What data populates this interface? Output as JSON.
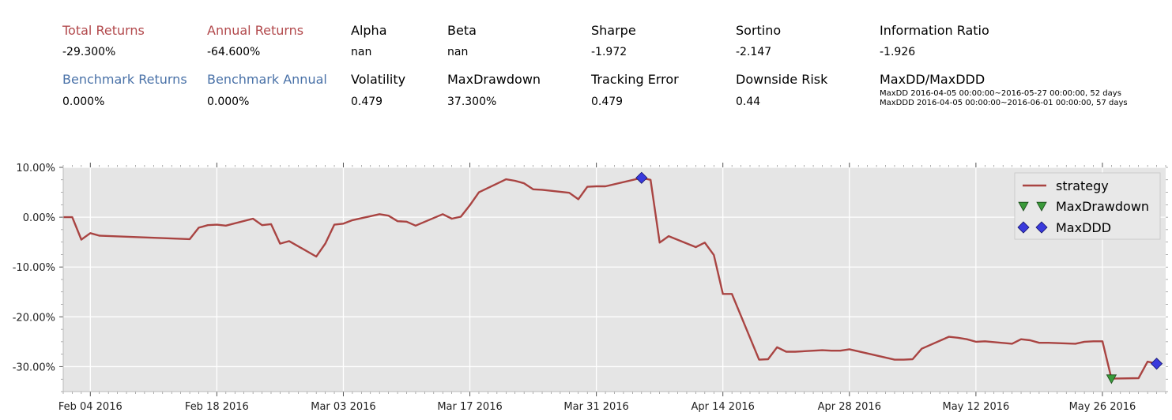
{
  "stats": {
    "total_returns": {
      "label": "Total Returns",
      "value": "-29.300%"
    },
    "annual_returns": {
      "label": "Annual Returns",
      "value": "-64.600%"
    },
    "alpha": {
      "label": "Alpha",
      "value": "nan"
    },
    "beta": {
      "label": "Beta",
      "value": "nan"
    },
    "sharpe": {
      "label": "Sharpe",
      "value": "-1.972"
    },
    "sortino": {
      "label": "Sortino",
      "value": "-2.147"
    },
    "information_ratio": {
      "label": "Information Ratio",
      "value": "-1.926"
    },
    "benchmark_returns": {
      "label": "Benchmark Returns",
      "value": "0.000%"
    },
    "benchmark_annual": {
      "label": "Benchmark Annual",
      "value": "0.000%"
    },
    "volatility": {
      "label": "Volatility",
      "value": "0.479"
    },
    "max_drawdown": {
      "label": "MaxDrawdown",
      "value": "37.300%"
    },
    "tracking_error": {
      "label": "Tracking Error",
      "value": "0.479"
    },
    "downside_risk": {
      "label": "Downside Risk",
      "value": "0.44"
    },
    "maxdd_maxddd": {
      "label": "MaxDD/MaxDDD",
      "maxdd_line": "MaxDD  2016-04-05 00:00:00~2016-05-27 00:00:00, 52 days",
      "maxddd_line": "MaxDDD 2016-04-05 00:00:00~2016-06-01 00:00:00, 57 days"
    }
  },
  "colors": {
    "strategy": "#a94442",
    "plot_bg": "#e5e5e5",
    "grid": "#ffffff",
    "maxdrawdown_marker": "#3a9a3a",
    "maxddd_marker": "#3a3adc",
    "label_red": "#b2494c",
    "label_blue": "#4a72a8"
  },
  "chart_data": {
    "type": "line",
    "x_axis": "date",
    "ylim": [
      -35,
      10
    ],
    "y_unit": "%",
    "yticks": [
      10,
      0,
      -10,
      -20,
      -30
    ],
    "ytick_labels": [
      "10.00%",
      "0.00%",
      "-10.00%",
      "-20.00%",
      "-30.00%"
    ],
    "xlim": [
      "2016-02-01",
      "2016-06-02"
    ],
    "xticks": [
      "2016-02-04",
      "2016-02-18",
      "2016-03-03",
      "2016-03-17",
      "2016-03-31",
      "2016-04-14",
      "2016-04-28",
      "2016-05-12",
      "2016-05-26"
    ],
    "xtick_labels": [
      "Feb 04 2016",
      "Feb 18 2016",
      "Mar 03 2016",
      "Mar 17 2016",
      "Mar 31 2016",
      "Apr 14 2016",
      "Apr 28 2016",
      "May 12 2016",
      "May 26 2016"
    ],
    "grid": true,
    "legend_position": "top-right",
    "series": [
      {
        "name": "strategy",
        "x": [
          "2016-02-01",
          "2016-02-02",
          "2016-02-03",
          "2016-02-04",
          "2016-02-05",
          "2016-02-15",
          "2016-02-16",
          "2016-02-17",
          "2016-02-18",
          "2016-02-19",
          "2016-02-22",
          "2016-02-23",
          "2016-02-24",
          "2016-02-25",
          "2016-02-26",
          "2016-02-29",
          "2016-03-01",
          "2016-03-02",
          "2016-03-03",
          "2016-03-04",
          "2016-03-07",
          "2016-03-08",
          "2016-03-09",
          "2016-03-10",
          "2016-03-11",
          "2016-03-14",
          "2016-03-15",
          "2016-03-16",
          "2016-03-17",
          "2016-03-18",
          "2016-03-21",
          "2016-03-22",
          "2016-03-23",
          "2016-03-24",
          "2016-03-25",
          "2016-03-28",
          "2016-03-29",
          "2016-03-30",
          "2016-03-31",
          "2016-04-01",
          "2016-04-05",
          "2016-04-06",
          "2016-04-07",
          "2016-04-08",
          "2016-04-11",
          "2016-04-12",
          "2016-04-13",
          "2016-04-14",
          "2016-04-15",
          "2016-04-18",
          "2016-04-19",
          "2016-04-20",
          "2016-04-21",
          "2016-04-22",
          "2016-04-25",
          "2016-04-26",
          "2016-04-27",
          "2016-04-28",
          "2016-05-03",
          "2016-05-04",
          "2016-05-05",
          "2016-05-06",
          "2016-05-09",
          "2016-05-10",
          "2016-05-11",
          "2016-05-12",
          "2016-05-13",
          "2016-05-16",
          "2016-05-17",
          "2016-05-18",
          "2016-05-19",
          "2016-05-20",
          "2016-05-23",
          "2016-05-24",
          "2016-05-25",
          "2016-05-26",
          "2016-05-27",
          "2016-05-30",
          "2016-05-31",
          "2016-06-01"
        ],
        "y": [
          0.0,
          0.0,
          -4.5,
          -3.2,
          -3.7,
          -4.4,
          -2.1,
          -1.6,
          -1.5,
          -1.7,
          -0.3,
          -1.6,
          -1.4,
          -5.3,
          -4.8,
          -7.9,
          -5.3,
          -1.5,
          -1.3,
          -0.6,
          0.6,
          0.3,
          -0.8,
          -0.9,
          -1.7,
          0.6,
          -0.3,
          0.1,
          2.4,
          5.0,
          7.6,
          7.3,
          6.8,
          5.6,
          5.5,
          4.9,
          3.6,
          6.1,
          6.2,
          6.2,
          7.9,
          7.5,
          -5.1,
          -3.8,
          -6.0,
          -5.1,
          -7.6,
          -15.4,
          -15.4,
          -28.6,
          -28.5,
          -26.1,
          -27.0,
          -27.0,
          -26.7,
          -26.8,
          -26.8,
          -26.5,
          -28.6,
          -28.6,
          -28.5,
          -26.4,
          -24.0,
          -24.2,
          -24.5,
          -25.0,
          -24.9,
          -25.4,
          -24.5,
          -24.7,
          -25.2,
          -25.2,
          -25.4,
          -25.0,
          -24.9,
          -24.9,
          -32.4,
          -32.3,
          -29.0,
          -29.4
        ]
      }
    ],
    "markers": [
      {
        "name": "MaxDrawdown",
        "shape": "triangle-down",
        "points": [
          {
            "x": "2016-05-27",
            "y": -32.4
          }
        ]
      },
      {
        "name": "MaxDDD",
        "shape": "diamond",
        "points": [
          {
            "x": "2016-04-05",
            "y": 7.9
          },
          {
            "x": "2016-06-01",
            "y": -29.4
          }
        ]
      }
    ]
  }
}
